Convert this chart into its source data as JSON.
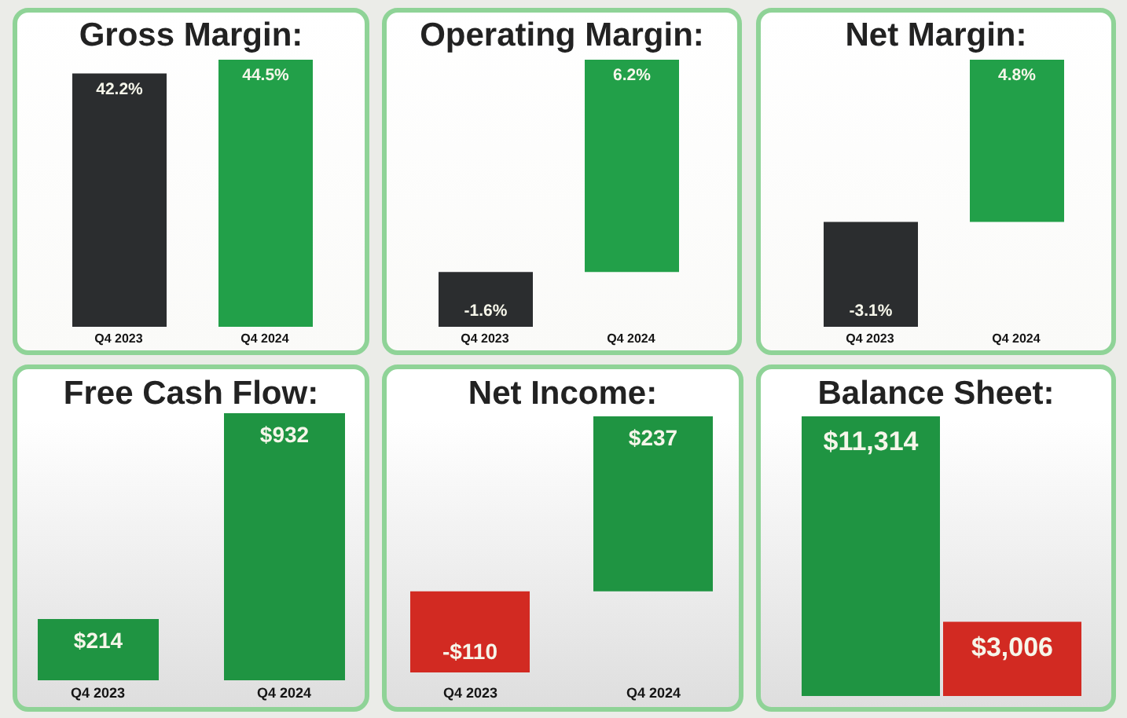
{
  "chart_data": [
    {
      "type": "bar",
      "title": "Gross Margin:",
      "categories": [
        "Q4 2023",
        "Q4 2024"
      ],
      "values": [
        42.2,
        44.5
      ],
      "colors": [
        "#2b2d2f",
        "#22a049"
      ],
      "value_labels": [
        "42.2%",
        "44.5%"
      ]
    },
    {
      "type": "bar",
      "title": "Operating Margin:",
      "categories": [
        "Q4 2023",
        "Q4 2024"
      ],
      "values": [
        -1.6,
        6.2
      ],
      "colors": [
        "#2b2d2f",
        "#22a049"
      ],
      "value_labels": [
        "-1.6%",
        "6.2%"
      ]
    },
    {
      "type": "bar",
      "title": "Net Margin:",
      "categories": [
        "Q4 2023",
        "Q4 2024"
      ],
      "values": [
        -3.1,
        4.8
      ],
      "colors": [
        "#2b2d2f",
        "#22a049"
      ],
      "value_labels": [
        "-3.1%",
        "4.8%"
      ]
    },
    {
      "type": "bar",
      "title": "Free Cash Flow:",
      "categories": [
        "Q4 2023",
        "Q4 2024"
      ],
      "values": [
        214,
        932
      ],
      "colors": [
        "#1f9442",
        "#1f9442"
      ],
      "value_labels": [
        "$214",
        "$932"
      ]
    },
    {
      "type": "bar",
      "title": "Net Income:",
      "categories": [
        "Q4 2023",
        "Q4 2024"
      ],
      "values": [
        -110,
        237
      ],
      "colors": [
        "#d22a22",
        "#1f9442"
      ],
      "value_labels": [
        "-$110",
        "$237"
      ]
    },
    {
      "type": "bar",
      "title": "Balance Sheet:",
      "categories": [
        null,
        null
      ],
      "values": [
        11314,
        3006
      ],
      "colors": [
        "#1f9442",
        "#d22a22"
      ],
      "value_labels": [
        "$11,314",
        "$3,006"
      ]
    }
  ]
}
